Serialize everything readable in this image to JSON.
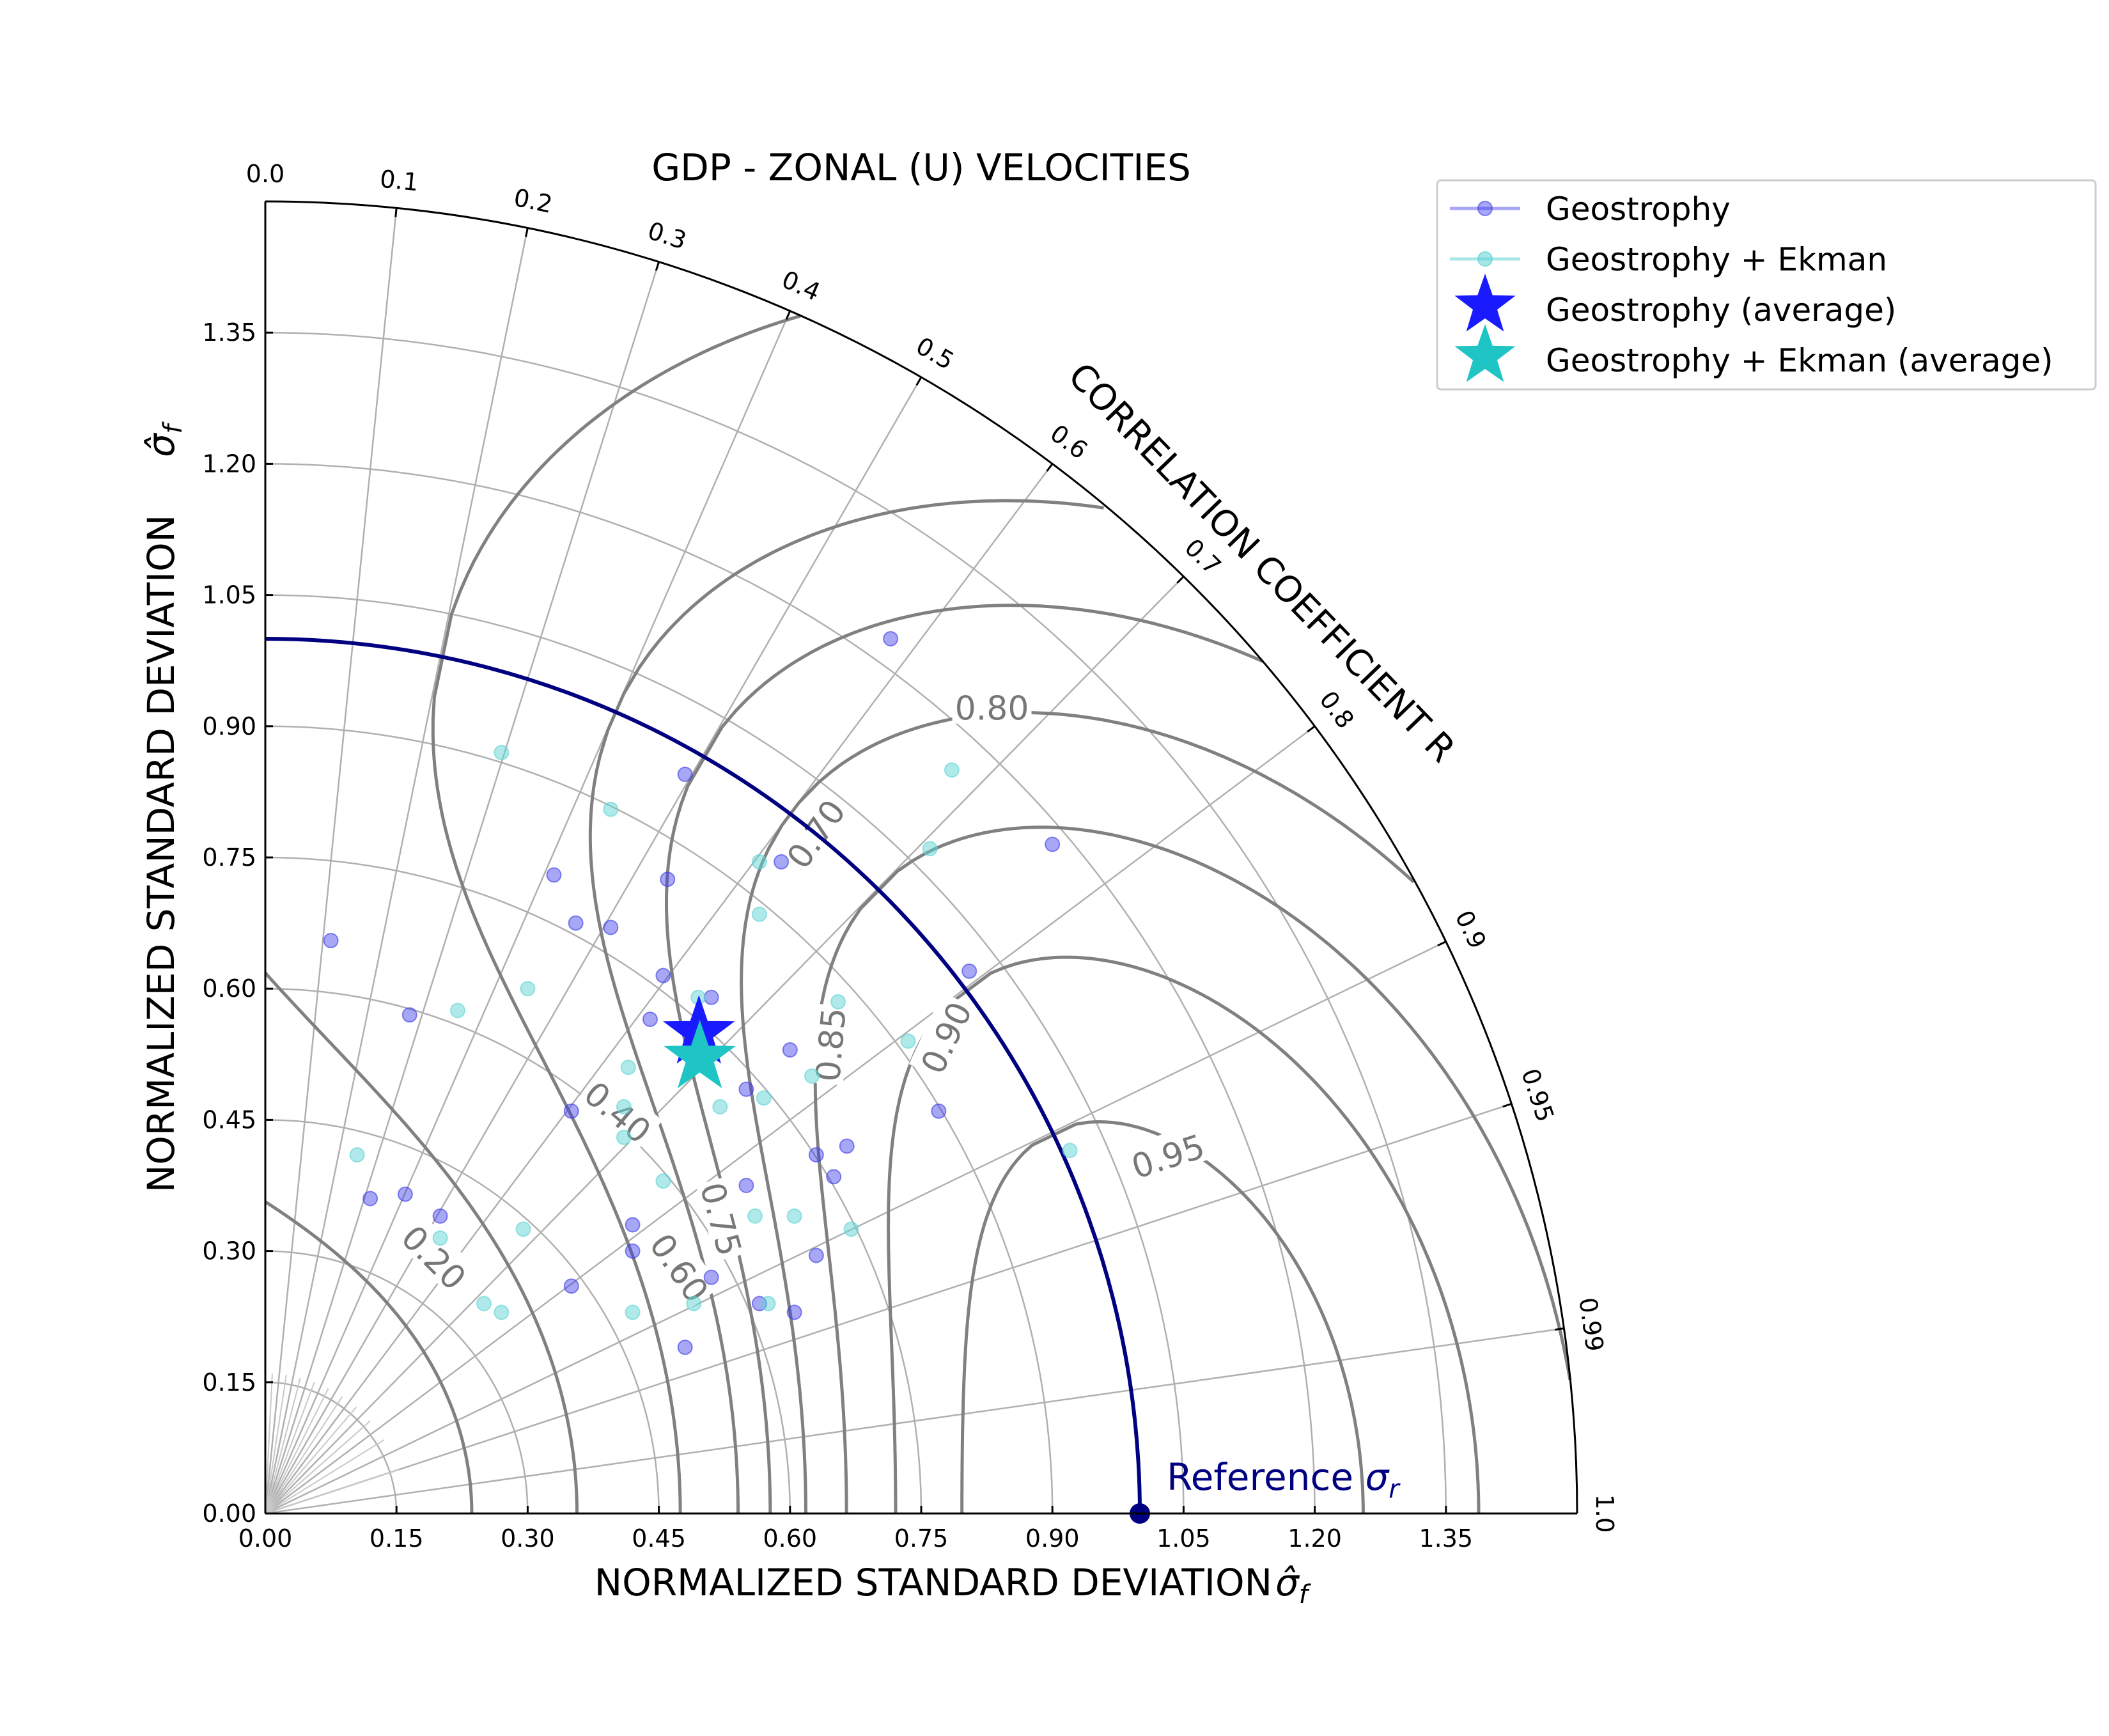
{
  "chart_data": {
    "type": "scatter",
    "title": "GDP - ZONAL (U) VELOCITIES",
    "xlabel": "NORMALIZED STANDARD DEVIATION",
    "ylabel": "NORMALIZED STANDARD DEVIATION",
    "axis_label_symbol": "σ̂f",
    "correlation_label": "CORRELATION COEFFICIENT R",
    "std_range": [
      0,
      1.5
    ],
    "std_ticks": [
      "0.00",
      "0.15",
      "0.30",
      "0.45",
      "0.60",
      "0.75",
      "0.90",
      "1.05",
      "1.20",
      "1.35"
    ],
    "std_tick_values": [
      0,
      0.15,
      0.3,
      0.45,
      0.6,
      0.75,
      0.9,
      1.05,
      1.2,
      1.35
    ],
    "correlation_ticks": [
      "0.0",
      "0.1",
      "0.2",
      "0.3",
      "0.4",
      "0.5",
      "0.6",
      "0.7",
      "0.8",
      "0.9",
      "0.95",
      "0.99",
      "1.0"
    ],
    "correlation_tick_values": [
      0,
      0.1,
      0.2,
      0.3,
      0.4,
      0.5,
      0.6,
      0.7,
      0.8,
      0.9,
      0.95,
      0.99,
      1.0
    ],
    "skill_contours": [
      0.2,
      0.4,
      0.6,
      0.7,
      0.75,
      0.8,
      0.85,
      0.9,
      0.95
    ],
    "skill_contour_labels": [
      "0.20",
      "0.40",
      "0.60",
      "0.70",
      "0.75",
      "0.80",
      "0.85",
      "0.90",
      "0.95"
    ],
    "reference": {
      "label": "Reference σr",
      "std": 1.0
    },
    "legend_position": "outside top-right",
    "grid": true,
    "colors": {
      "geostrophy": "#3b3be8",
      "ekman": "#5fd3d3",
      "star_geostrophy": "#1a1aff",
      "star_ekman": "#1fc5c5",
      "reference": "#000080",
      "contour": "#808080"
    },
    "series": [
      {
        "name": "Geostrophy",
        "points": [
          [
            0.075,
            0.655
          ],
          [
            0.165,
            0.57
          ],
          [
            0.12,
            0.36
          ],
          [
            0.16,
            0.365
          ],
          [
            0.2,
            0.34
          ],
          [
            0.35,
            0.26
          ],
          [
            0.35,
            0.46
          ],
          [
            0.33,
            0.73
          ],
          [
            0.355,
            0.675
          ],
          [
            0.395,
            0.67
          ],
          [
            0.44,
            0.565
          ],
          [
            0.48,
            0.845
          ],
          [
            0.46,
            0.725
          ],
          [
            0.455,
            0.615
          ],
          [
            0.48,
            0.19
          ],
          [
            0.42,
            0.33
          ],
          [
            0.42,
            0.3
          ],
          [
            0.51,
            0.59
          ],
          [
            0.51,
            0.27
          ],
          [
            0.55,
            0.485
          ],
          [
            0.55,
            0.375
          ],
          [
            0.565,
            0.24
          ],
          [
            0.59,
            0.745
          ],
          [
            0.6,
            0.53
          ],
          [
            0.605,
            0.23
          ],
          [
            0.63,
            0.41
          ],
          [
            0.63,
            0.295
          ],
          [
            0.65,
            0.385
          ],
          [
            0.665,
            0.42
          ],
          [
            0.715,
            1.0
          ],
          [
            0.77,
            0.46
          ],
          [
            0.805,
            0.62
          ],
          [
            0.9,
            0.765
          ]
        ]
      },
      {
        "name": "Geostrophy + Ekman",
        "points": [
          [
            0.105,
            0.41
          ],
          [
            0.2,
            0.315
          ],
          [
            0.22,
            0.575
          ],
          [
            0.25,
            0.24
          ],
          [
            0.27,
            0.23
          ],
          [
            0.27,
            0.87
          ],
          [
            0.295,
            0.325
          ],
          [
            0.3,
            0.6
          ],
          [
            0.395,
            0.805
          ],
          [
            0.41,
            0.465
          ],
          [
            0.41,
            0.43
          ],
          [
            0.415,
            0.51
          ],
          [
            0.42,
            0.23
          ],
          [
            0.455,
            0.38
          ],
          [
            0.49,
            0.24
          ],
          [
            0.495,
            0.59
          ],
          [
            0.52,
            0.465
          ],
          [
            0.56,
            0.34
          ],
          [
            0.565,
            0.745
          ],
          [
            0.565,
            0.685
          ],
          [
            0.57,
            0.475
          ],
          [
            0.575,
            0.24
          ],
          [
            0.605,
            0.34
          ],
          [
            0.625,
            0.5
          ],
          [
            0.655,
            0.585
          ],
          [
            0.67,
            0.325
          ],
          [
            0.735,
            0.54
          ],
          [
            0.76,
            0.76
          ],
          [
            0.785,
            0.85
          ],
          [
            0.92,
            0.415
          ]
        ]
      }
    ],
    "averages": [
      {
        "name": "Geostrophy (average)",
        "std": 0.74,
        "corr": 0.67
      },
      {
        "name": "Geostrophy + Ekman (average)",
        "std": 0.72,
        "corr": 0.69
      }
    ]
  }
}
